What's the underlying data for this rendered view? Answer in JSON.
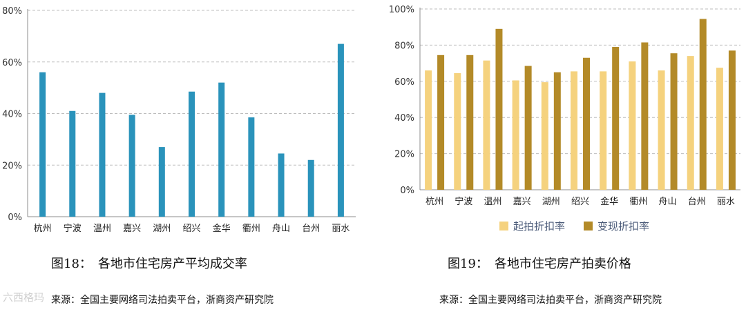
{
  "charts": [
    {
      "caption": "图18：　各地市住宅房产平均成交率",
      "source": "来源：全国主要网络司法拍卖平台，浙商资产研究院"
    },
    {
      "caption": "图19：　各地市住宅房产拍卖价格",
      "source": "来源：全国主要网络司法拍卖平台，浙商资产研究院"
    }
  ],
  "watermark": "六西格玛",
  "chart_data": [
    {
      "type": "bar",
      "title": "",
      "xlabel": "",
      "ylabel": "",
      "categories": [
        "杭州",
        "宁波",
        "温州",
        "嘉兴",
        "湖州",
        "绍兴",
        "金华",
        "衢州",
        "舟山",
        "台州",
        "丽水"
      ],
      "series": [
        {
          "values": [
            56,
            41,
            48,
            39.5,
            27,
            48.5,
            52,
            38.5,
            24.5,
            22,
            67
          ],
          "color": "#2a93bb"
        }
      ],
      "ylim": [
        0,
        80
      ],
      "yticks": [
        "0%",
        "20%",
        "40%",
        "60%",
        "80%"
      ],
      "grid": true,
      "legend": "none"
    },
    {
      "type": "bar",
      "title": "",
      "xlabel": "",
      "ylabel": "",
      "categories": [
        "杭州",
        "宁波",
        "温州",
        "嘉兴",
        "湖州",
        "绍兴",
        "金华",
        "衢州",
        "舟山",
        "台州",
        "丽水"
      ],
      "series": [
        {
          "name": "起拍折扣率",
          "values": [
            66,
            64.5,
            71.5,
            60.5,
            59.5,
            65.5,
            65.5,
            71,
            66,
            74,
            67.5
          ],
          "color": "#f5d27e"
        },
        {
          "name": "变现折扣率",
          "values": [
            74.5,
            74.5,
            89,
            68.5,
            65,
            73,
            79,
            81.5,
            75.5,
            94.5,
            77
          ],
          "color": "#b38a28"
        }
      ],
      "ylim": [
        0,
        100
      ],
      "yticks": [
        "0%",
        "20%",
        "40%",
        "60%",
        "80%",
        "100%"
      ],
      "grid": true,
      "legend": "bottom"
    }
  ]
}
